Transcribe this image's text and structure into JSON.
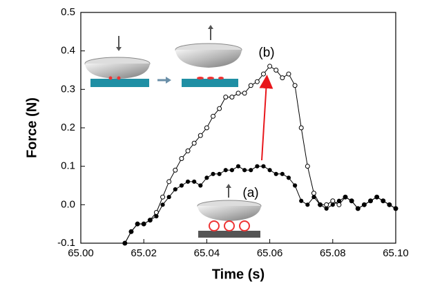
{
  "chart_data": {
    "type": "line",
    "x_label": "Time (s)",
    "y_label": "Force (N)",
    "x": [
      65.014,
      65.016,
      65.018,
      65.02,
      65.022,
      65.024,
      65.026,
      65.028,
      65.03,
      65.032,
      65.034,
      65.036,
      65.038,
      65.04,
      65.042,
      65.044,
      65.046,
      65.048,
      65.05,
      65.052,
      65.054,
      65.056,
      65.058,
      65.06,
      65.062,
      65.064,
      65.066,
      65.068,
      65.07,
      65.072,
      65.074,
      65.076,
      65.078,
      65.08,
      65.082,
      65.084,
      65.086,
      65.088,
      65.09,
      65.092,
      65.094,
      65.096,
      65.098,
      65.1
    ],
    "series": [
      {
        "color": "#000000",
        "marker": "open",
        "values": [
          -0.1,
          -0.07,
          -0.05,
          -0.05,
          -0.04,
          -0.02,
          0.02,
          0.06,
          0.09,
          0.12,
          0.14,
          0.16,
          0.18,
          0.2,
          0.23,
          0.25,
          0.28,
          0.28,
          0.29,
          0.29,
          0.31,
          0.32,
          0.34,
          0.36,
          0.35,
          0.33,
          0.34,
          0.31,
          0.2,
          0.1,
          0.03,
          0.0,
          0.0,
          0.01,
          0.0,
          0.02,
          0.01,
          -0.01,
          0.0,
          0.01,
          0.02,
          0.01,
          0.0,
          -0.01
        ]
      },
      {
        "color": "#000000",
        "marker": "filled",
        "values": [
          -0.1,
          -0.07,
          -0.05,
          -0.05,
          -0.04,
          -0.03,
          0.0,
          0.02,
          0.04,
          0.05,
          0.06,
          0.06,
          0.05,
          0.07,
          0.08,
          0.08,
          0.09,
          0.09,
          0.1,
          0.09,
          0.09,
          0.1,
          0.1,
          0.09,
          0.08,
          0.08,
          0.07,
          0.05,
          0.01,
          0.0,
          0.02,
          0.0,
          -0.01,
          0.0,
          0.01,
          0.02,
          0.01,
          -0.01,
          0.0,
          0.01,
          0.02,
          0.01,
          0.0,
          -0.01
        ]
      }
    ],
    "xlim": [
      65.0,
      65.1
    ],
    "xticks": [
      {
        "value": 65.0,
        "label": "65.00"
      },
      {
        "value": 65.02,
        "label": "65.02"
      },
      {
        "value": 65.04,
        "label": "65.04"
      },
      {
        "value": 65.06,
        "label": "65.06"
      },
      {
        "value": 65.08,
        "label": "65.08"
      },
      {
        "value": 65.1,
        "label": "65.10"
      }
    ],
    "ylim": [
      -0.1,
      0.5
    ],
    "yticks": [
      -0.1,
      {
        "value": 0,
        "label": "0.0"
      },
      0.1,
      0.2,
      0.3,
      0.4,
      0.5
    ],
    "annotations": [
      "(a)",
      "(b)"
    ],
    "arrow_color": "#e8161b"
  }
}
